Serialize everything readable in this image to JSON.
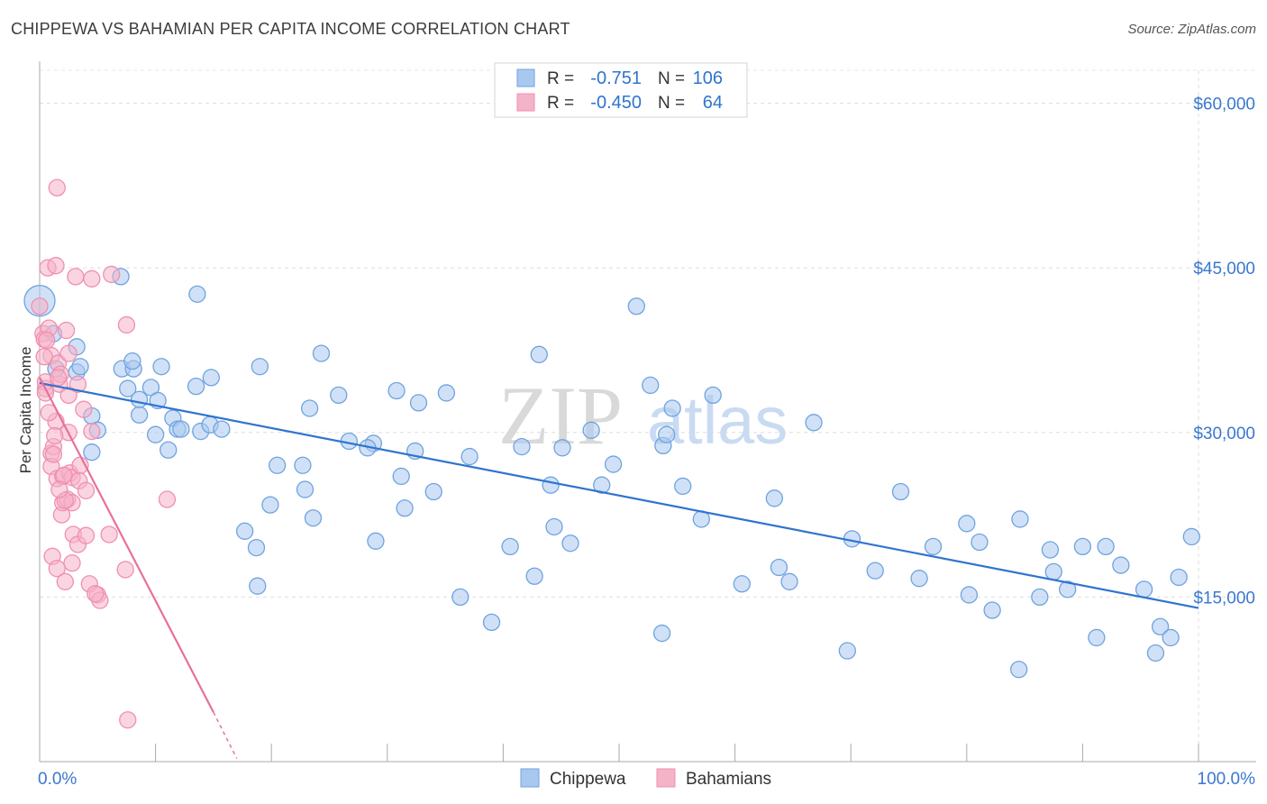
{
  "header": {
    "title": "CHIPPEWA VS BAHAMIAN PER CAPITA INCOME CORRELATION CHART",
    "source": "Source: ZipAtlas.com"
  },
  "watermark": {
    "zip": "ZIP",
    "atlas": "atlas"
  },
  "legend_top": {
    "rows": [
      {
        "r_label": "R =",
        "r_value": "-0.751",
        "n_label": "N =",
        "n_value": "106",
        "color": "#a9c8f0"
      },
      {
        "r_label": "R =",
        "r_value": "-0.450",
        "n_label": "N =",
        "n_value": "64",
        "color": "#f5b3c8"
      }
    ]
  },
  "chart_data": {
    "type": "scatter",
    "title": "CHIPPEWA VS BAHAMIAN PER CAPITA INCOME CORRELATION CHART",
    "ylabel": "Per Capita Income",
    "xlabel": "",
    "xlim": [
      0,
      100
    ],
    "ylim": [
      0,
      63000
    ],
    "x_tick_labels": [
      {
        "value": 0,
        "label": "0.0%"
      },
      {
        "value": 100,
        "label": "100.0%"
      }
    ],
    "y_tick_labels": [
      {
        "value": 15000,
        "label": "$15,000"
      },
      {
        "value": 30000,
        "label": "$30,000"
      },
      {
        "value": 45000,
        "label": "$45,000"
      },
      {
        "value": 60000,
        "label": "$60,000"
      }
    ],
    "grid": true,
    "legend_position": "bottom-center",
    "series": [
      {
        "name": "Chippewa",
        "color": "#6fa3e0",
        "fill": "#a9c8f0",
        "trend": {
          "x": [
            0,
            100
          ],
          "y": [
            34500,
            14000
          ],
          "color": "#2f74d0"
        },
        "points": [
          [
            0,
            42000
          ],
          [
            1.2,
            39000
          ],
          [
            1.4,
            35800
          ],
          [
            3.2,
            35500
          ],
          [
            3.2,
            37800
          ],
          [
            3.5,
            36000
          ],
          [
            4.5,
            31500
          ],
          [
            4.5,
            28200
          ],
          [
            5,
            30200
          ],
          [
            7,
            44200
          ],
          [
            7.1,
            35800
          ],
          [
            7.6,
            34000
          ],
          [
            8.1,
            35800
          ],
          [
            8.6,
            31600
          ],
          [
            8.6,
            33000
          ],
          [
            9.6,
            34100
          ],
          [
            10.2,
            32900
          ],
          [
            10.5,
            36000
          ],
          [
            10,
            29800
          ],
          [
            11.1,
            28400
          ],
          [
            11.5,
            31300
          ],
          [
            11.9,
            30300
          ],
          [
            12.2,
            30300
          ],
          [
            13.9,
            30100
          ],
          [
            13.5,
            34200
          ],
          [
            14.8,
            35000
          ],
          [
            14.7,
            30700
          ],
          [
            15.7,
            30300
          ],
          [
            13.6,
            42600
          ],
          [
            17.7,
            21000
          ],
          [
            18.8,
            16000
          ],
          [
            18.7,
            19500
          ],
          [
            19,
            36000
          ],
          [
            19.9,
            23400
          ],
          [
            20.5,
            27000
          ],
          [
            22.7,
            27000
          ],
          [
            22.9,
            24800
          ],
          [
            23.3,
            32200
          ],
          [
            23.6,
            22200
          ],
          [
            24.3,
            37200
          ],
          [
            25.8,
            33400
          ],
          [
            28.8,
            29000
          ],
          [
            28.3,
            28600
          ],
          [
            29,
            20100
          ],
          [
            30.8,
            33800
          ],
          [
            31.2,
            26000
          ],
          [
            31.5,
            23100
          ],
          [
            32.4,
            28300
          ],
          [
            32.7,
            32700
          ],
          [
            34,
            24600
          ],
          [
            35.1,
            33600
          ],
          [
            36.3,
            15000
          ],
          [
            39,
            12700
          ],
          [
            40.6,
            19600
          ],
          [
            41.6,
            28700
          ],
          [
            43.1,
            37100
          ],
          [
            44.1,
            25200
          ],
          [
            44.4,
            21400
          ],
          [
            45.1,
            28600
          ],
          [
            45.8,
            19900
          ],
          [
            47.6,
            30200
          ],
          [
            48.5,
            25200
          ],
          [
            49.5,
            27100
          ],
          [
            51.5,
            41500
          ],
          [
            52.7,
            34300
          ],
          [
            53.7,
            11700
          ],
          [
            53.8,
            28800
          ],
          [
            54.1,
            29800
          ],
          [
            54.6,
            32200
          ],
          [
            55.5,
            25100
          ],
          [
            57.1,
            22100
          ],
          [
            60.6,
            16200
          ],
          [
            63.4,
            24000
          ],
          [
            63.8,
            17700
          ],
          [
            64.7,
            16400
          ],
          [
            69.7,
            10100
          ],
          [
            70.1,
            20300
          ],
          [
            72.1,
            17400
          ],
          [
            74.3,
            24600
          ],
          [
            75.9,
            16700
          ],
          [
            77.1,
            19600
          ],
          [
            80,
            21700
          ],
          [
            80.2,
            15200
          ],
          [
            81.1,
            20000
          ],
          [
            82.2,
            13800
          ],
          [
            84.5,
            8400
          ],
          [
            84.6,
            22100
          ],
          [
            86.3,
            15000
          ],
          [
            87.2,
            19300
          ],
          [
            87.5,
            17300
          ],
          [
            88.7,
            15700
          ],
          [
            90,
            19600
          ],
          [
            91.2,
            11300
          ],
          [
            92,
            19600
          ],
          [
            93.3,
            17900
          ],
          [
            95.3,
            15700
          ],
          [
            96.3,
            9900
          ],
          [
            96.7,
            12300
          ],
          [
            97.6,
            11300
          ],
          [
            98.3,
            16800
          ],
          [
            99.4,
            20500
          ],
          [
            8,
            36500
          ],
          [
            26.7,
            29200
          ],
          [
            37.1,
            27800
          ],
          [
            66.8,
            30900
          ],
          [
            58.1,
            33400
          ],
          [
            42.7,
            16900
          ]
        ]
      },
      {
        "name": "Bahamians",
        "color": "#f08fb0",
        "fill": "#f5b3c8",
        "trend": {
          "x": [
            0,
            15
          ],
          "y": [
            35000,
            4500
          ],
          "dash_to": [
            17,
            300
          ],
          "color": "#e8709a"
        },
        "points": [
          [
            0,
            41500
          ],
          [
            0.3,
            39000
          ],
          [
            0.4,
            38500
          ],
          [
            0.5,
            34000
          ],
          [
            0.5,
            34600
          ],
          [
            0.7,
            45000
          ],
          [
            0.8,
            39500
          ],
          [
            1,
            37000
          ],
          [
            1,
            28100
          ],
          [
            1,
            26900
          ],
          [
            1.1,
            18700
          ],
          [
            1.2,
            28700
          ],
          [
            1.2,
            28000
          ],
          [
            1.4,
            31000
          ],
          [
            1.4,
            45200
          ],
          [
            1.5,
            52300
          ],
          [
            1.5,
            25800
          ],
          [
            1.5,
            17600
          ],
          [
            1.6,
            36300
          ],
          [
            1.7,
            34400
          ],
          [
            1.8,
            35300
          ],
          [
            1.9,
            22500
          ],
          [
            2,
            23600
          ],
          [
            2,
            26000
          ],
          [
            2.2,
            16400
          ],
          [
            2.3,
            39300
          ],
          [
            2.4,
            23900
          ],
          [
            2.5,
            37200
          ],
          [
            2.5,
            33400
          ],
          [
            2.5,
            30000
          ],
          [
            2.6,
            26300
          ],
          [
            2.8,
            23600
          ],
          [
            2.8,
            18100
          ],
          [
            2.8,
            25900
          ],
          [
            2.9,
            20700
          ],
          [
            3.1,
            44200
          ],
          [
            3.3,
            19800
          ],
          [
            3.4,
            25600
          ],
          [
            3.5,
            27000
          ],
          [
            3.8,
            32100
          ],
          [
            4,
            24700
          ],
          [
            4,
            20600
          ],
          [
            4.3,
            16200
          ],
          [
            4.5,
            44000
          ],
          [
            4.5,
            30100
          ],
          [
            5,
            15200
          ],
          [
            5.2,
            14700
          ],
          [
            6.2,
            44400
          ],
          [
            6,
            20700
          ],
          [
            7.4,
            17500
          ],
          [
            7.5,
            39800
          ],
          [
            7.6,
            3800
          ],
          [
            11,
            23900
          ],
          [
            0.8,
            31800
          ],
          [
            3.3,
            34400
          ],
          [
            1.6,
            35000
          ],
          [
            0.6,
            38400
          ],
          [
            2.1,
            26100
          ],
          [
            4.8,
            15300
          ],
          [
            1.3,
            29700
          ],
          [
            0.4,
            36900
          ],
          [
            2.2,
            23800
          ],
          [
            1.7,
            24800
          ],
          [
            0.5,
            33600
          ]
        ]
      }
    ]
  },
  "legend_bottom": {
    "items": [
      {
        "label": "Chippewa",
        "color": "#a9c8f0"
      },
      {
        "label": "Bahamians",
        "color": "#f5b3c8"
      }
    ]
  }
}
